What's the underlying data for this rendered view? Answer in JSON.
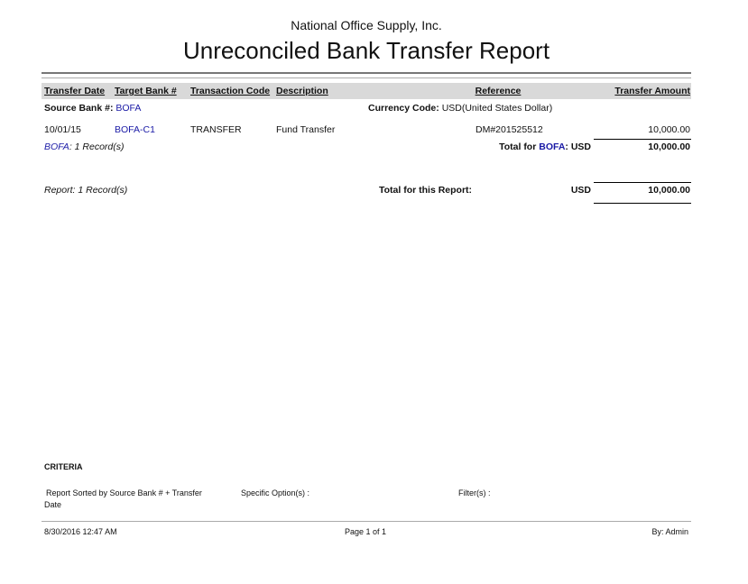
{
  "header": {
    "company": "National Office Supply, Inc.",
    "title": "Unreconciled Bank Transfer Report"
  },
  "columns": [
    "Transfer Date",
    "Target Bank #",
    "Transaction Code",
    "Description",
    "Reference",
    "Transfer Amount"
  ],
  "group": {
    "source_label": "Source Bank #:",
    "source_bank": "BOFA",
    "currency_label": "Currency Code:",
    "currency_value": "USD(United States Dollar)",
    "rows": [
      {
        "date": "10/01/15",
        "target_bank": "BOFA-C1",
        "code": "TRANSFER",
        "description": "Fund Transfer",
        "reference": "DM#201525512",
        "amount": "10,000.00"
      }
    ],
    "count_bank": "BOFA",
    "count_text": ": 1 Record(s)",
    "total_prefix": "Total for ",
    "total_bank": "BOFA",
    "total_suffix": ": USD",
    "total": "10,000.00"
  },
  "report_total": {
    "count": "Report: 1 Record(s)",
    "label": "Total for this Report:",
    "currency": "USD",
    "amount": "10,000.00"
  },
  "criteria": {
    "title": "CRITERIA",
    "sorted": "Report Sorted by Source Bank # + Transfer",
    "sorted2": "Date",
    "options": "Specific Option(s) :",
    "filters": "Filter(s) :"
  },
  "footer": {
    "datetime": "8/30/2016 12:47 AM",
    "page": "Page 1 of 1",
    "by": "By: Admin"
  },
  "colors": {
    "link": "#1a1aa6",
    "header_bg": "#d9d9d9"
  }
}
